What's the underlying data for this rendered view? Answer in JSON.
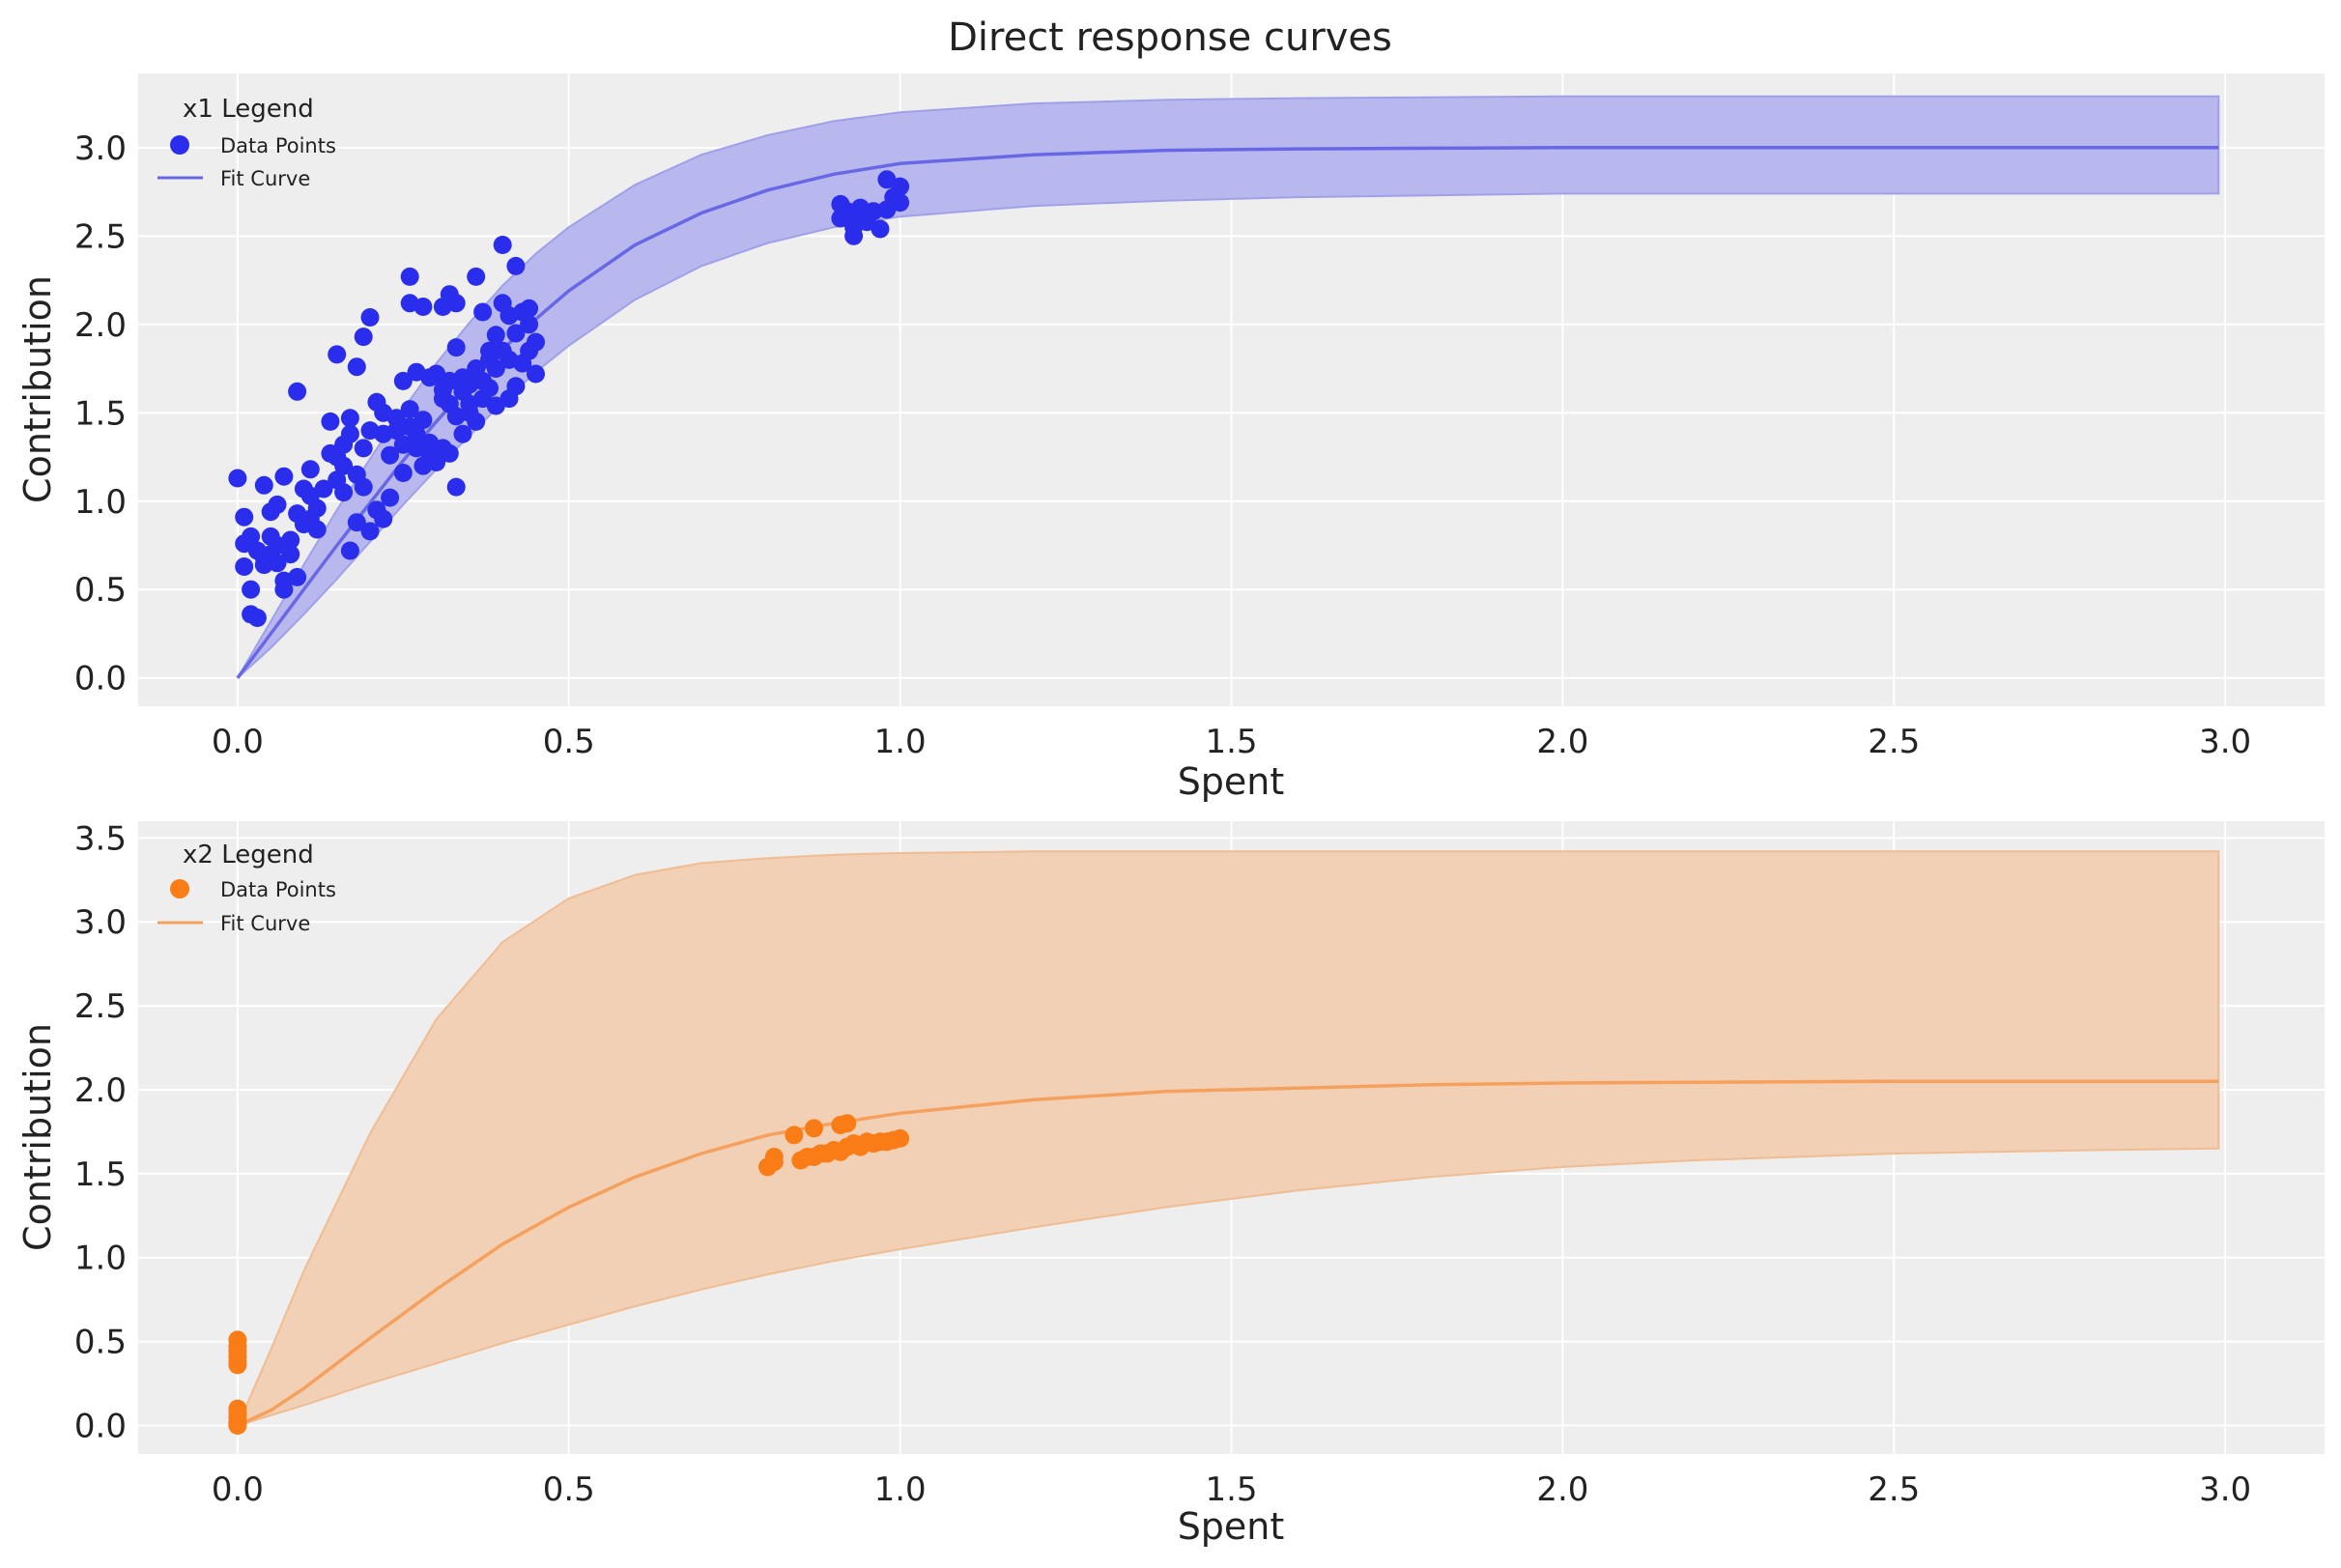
{
  "figure": {
    "title": "Direct response curves"
  },
  "chart_data": [
    {
      "type": "scatter",
      "xlabel": "Spent",
      "ylabel": "Contribution",
      "xlim": [
        -0.15,
        3.15
      ],
      "ylim": [
        -0.16,
        3.42
      ],
      "xticks": [
        0.0,
        0.5,
        1.0,
        1.5,
        2.0,
        2.5,
        3.0
      ],
      "xtick_labels": [
        "0.0",
        "0.5",
        "1.0",
        "1.5",
        "2.0",
        "2.5",
        "3.0"
      ],
      "yticks": [
        0.0,
        0.5,
        1.0,
        1.5,
        2.0,
        2.5,
        3.0
      ],
      "ytick_labels": [
        "0.0",
        "0.5",
        "1.0",
        "1.5",
        "2.0",
        "2.5",
        "3.0"
      ],
      "grid": true,
      "legend": {
        "title": "x1 Legend",
        "placement": "top-left",
        "entries": [
          "Data Points",
          "Fit Curve"
        ]
      },
      "colors": {
        "points": "#2a2eec",
        "curve": "#6868e6",
        "band": "#b8b8ee",
        "band_edge": "#a0a0ea"
      },
      "series": [
        {
          "name": "Data Points",
          "kind": "scatter",
          "points": [
            [
              0.0,
              1.13
            ],
            [
              0.01,
              0.91
            ],
            [
              0.01,
              0.76
            ],
            [
              0.01,
              0.63
            ],
            [
              0.02,
              0.5
            ],
            [
              0.02,
              0.36
            ],
            [
              0.02,
              0.8
            ],
            [
              0.03,
              0.34
            ],
            [
              0.03,
              0.72
            ],
            [
              0.04,
              1.09
            ],
            [
              0.04,
              0.64
            ],
            [
              0.04,
              0.68
            ],
            [
              0.05,
              0.8
            ],
            [
              0.05,
              0.94
            ],
            [
              0.05,
              0.7
            ],
            [
              0.06,
              0.75
            ],
            [
              0.06,
              0.65
            ],
            [
              0.06,
              0.98
            ],
            [
              0.07,
              1.14
            ],
            [
              0.07,
              0.5
            ],
            [
              0.07,
              0.55
            ],
            [
              0.08,
              0.7
            ],
            [
              0.08,
              0.78
            ],
            [
              0.09,
              1.62
            ],
            [
              0.09,
              0.93
            ],
            [
              0.09,
              0.57
            ],
            [
              0.1,
              0.87
            ],
            [
              0.1,
              1.07
            ],
            [
              0.11,
              1.03
            ],
            [
              0.11,
              0.9
            ],
            [
              0.11,
              1.18
            ],
            [
              0.12,
              0.84
            ],
            [
              0.12,
              0.96
            ],
            [
              0.13,
              1.07
            ],
            [
              0.14,
              1.27
            ],
            [
              0.14,
              1.45
            ],
            [
              0.15,
              1.83
            ],
            [
              0.15,
              1.12
            ],
            [
              0.15,
              1.25
            ],
            [
              0.16,
              1.32
            ],
            [
              0.16,
              1.05
            ],
            [
              0.16,
              1.2
            ],
            [
              0.17,
              1.47
            ],
            [
              0.17,
              1.38
            ],
            [
              0.17,
              0.72
            ],
            [
              0.18,
              1.15
            ],
            [
              0.18,
              0.88
            ],
            [
              0.18,
              1.76
            ],
            [
              0.19,
              1.93
            ],
            [
              0.19,
              1.08
            ],
            [
              0.19,
              1.3
            ],
            [
              0.2,
              1.4
            ],
            [
              0.2,
              0.83
            ],
            [
              0.2,
              2.04
            ],
            [
              0.21,
              1.56
            ],
            [
              0.21,
              0.95
            ],
            [
              0.22,
              0.9
            ],
            [
              0.22,
              1.38
            ],
            [
              0.22,
              1.5
            ],
            [
              0.23,
              1.02
            ],
            [
              0.23,
              1.26
            ],
            [
              0.24,
              1.47
            ],
            [
              0.24,
              1.4
            ],
            [
              0.25,
              1.68
            ],
            [
              0.25,
              1.16
            ],
            [
              0.25,
              1.32
            ],
            [
              0.26,
              2.27
            ],
            [
              0.26,
              2.12
            ],
            [
              0.26,
              1.42
            ],
            [
              0.26,
              1.52
            ],
            [
              0.27,
              1.73
            ],
            [
              0.27,
              1.3
            ],
            [
              0.27,
              1.38
            ],
            [
              0.28,
              2.1
            ],
            [
              0.28,
              1.2
            ],
            [
              0.28,
              1.46
            ],
            [
              0.29,
              1.7
            ],
            [
              0.29,
              1.33
            ],
            [
              0.29,
              1.27
            ],
            [
              0.3,
              1.72
            ],
            [
              0.3,
              1.22
            ],
            [
              0.31,
              2.1
            ],
            [
              0.31,
              1.58
            ],
            [
              0.31,
              1.63
            ],
            [
              0.31,
              1.3
            ],
            [
              0.32,
              2.17
            ],
            [
              0.32,
              1.68
            ],
            [
              0.32,
              1.27
            ],
            [
              0.32,
              1.55
            ],
            [
              0.33,
              1.08
            ],
            [
              0.33,
              2.12
            ],
            [
              0.33,
              1.87
            ],
            [
              0.33,
              1.48
            ],
            [
              0.34,
              1.7
            ],
            [
              0.34,
              1.62
            ],
            [
              0.34,
              1.38
            ],
            [
              0.35,
              1.55
            ],
            [
              0.35,
              1.5
            ],
            [
              0.35,
              1.66
            ],
            [
              0.36,
              1.75
            ],
            [
              0.36,
              2.27
            ],
            [
              0.36,
              1.45
            ],
            [
              0.37,
              2.07
            ],
            [
              0.37,
              1.58
            ],
            [
              0.37,
              1.68
            ],
            [
              0.38,
              1.85
            ],
            [
              0.38,
              1.8
            ],
            [
              0.38,
              1.64
            ],
            [
              0.39,
              1.54
            ],
            [
              0.39,
              1.94
            ],
            [
              0.39,
              1.75
            ],
            [
              0.4,
              2.45
            ],
            [
              0.4,
              1.85
            ],
            [
              0.4,
              2.12
            ],
            [
              0.41,
              2.05
            ],
            [
              0.41,
              1.8
            ],
            [
              0.41,
              1.58
            ],
            [
              0.42,
              2.33
            ],
            [
              0.42,
              1.95
            ],
            [
              0.42,
              1.65
            ],
            [
              0.43,
              2.07
            ],
            [
              0.43,
              1.78
            ],
            [
              0.44,
              2.0
            ],
            [
              0.44,
              1.85
            ],
            [
              0.44,
              2.09
            ],
            [
              0.45,
              1.9
            ],
            [
              0.45,
              1.72
            ],
            [
              0.91,
              2.68
            ],
            [
              0.91,
              2.6
            ],
            [
              0.92,
              2.64
            ],
            [
              0.93,
              2.5
            ],
            [
              0.93,
              2.55
            ],
            [
              0.94,
              2.62
            ],
            [
              0.94,
              2.66
            ],
            [
              0.95,
              2.58
            ],
            [
              0.95,
              2.62
            ],
            [
              0.96,
              2.64
            ],
            [
              0.97,
              2.54
            ],
            [
              0.98,
              2.82
            ],
            [
              0.98,
              2.65
            ],
            [
              0.99,
              2.72
            ],
            [
              1.0,
              2.78
            ],
            [
              1.0,
              2.69
            ]
          ]
        },
        {
          "name": "Fit Curve",
          "kind": "line",
          "x": [
            0.0,
            0.05,
            0.1,
            0.15,
            0.2,
            0.25,
            0.3,
            0.35,
            0.4,
            0.45,
            0.5,
            0.6,
            0.7,
            0.8,
            0.9,
            1.0,
            1.2,
            1.4,
            1.6,
            1.8,
            2.0,
            2.2,
            2.5,
            2.8,
            2.99
          ],
          "y": [
            0.0,
            0.25,
            0.5,
            0.75,
            0.99,
            1.23,
            1.45,
            1.66,
            1.86,
            2.03,
            2.19,
            2.45,
            2.63,
            2.76,
            2.85,
            2.91,
            2.96,
            2.985,
            2.993,
            2.997,
            3.0,
            3.0,
            3.0,
            3.0,
            3.0
          ]
        },
        {
          "kind": "band",
          "x": [
            0.0,
            0.05,
            0.1,
            0.15,
            0.2,
            0.25,
            0.3,
            0.35,
            0.4,
            0.45,
            0.5,
            0.6,
            0.7,
            0.8,
            0.9,
            1.0,
            1.2,
            1.4,
            1.6,
            1.8,
            2.0,
            2.2,
            2.5,
            2.8,
            2.99
          ],
          "lower": [
            0.0,
            0.17,
            0.36,
            0.56,
            0.77,
            0.98,
            1.18,
            1.37,
            1.56,
            1.73,
            1.88,
            2.14,
            2.33,
            2.46,
            2.55,
            2.61,
            2.67,
            2.7,
            2.72,
            2.73,
            2.74,
            2.74,
            2.74,
            2.74,
            2.74
          ],
          "upper": [
            0.0,
            0.32,
            0.64,
            0.95,
            1.24,
            1.52,
            1.78,
            2.01,
            2.22,
            2.4,
            2.55,
            2.79,
            2.96,
            3.07,
            3.15,
            3.2,
            3.25,
            3.27,
            3.28,
            3.285,
            3.29,
            3.29,
            3.29,
            3.29,
            3.29
          ]
        }
      ]
    },
    {
      "type": "scatter",
      "xlabel": "Spent",
      "ylabel": "Contribution",
      "xlim": [
        -0.15,
        3.15
      ],
      "ylim": [
        -0.17,
        3.6
      ],
      "xticks": [
        0.0,
        0.5,
        1.0,
        1.5,
        2.0,
        2.5,
        3.0
      ],
      "xtick_labels": [
        "0.0",
        "0.5",
        "1.0",
        "1.5",
        "2.0",
        "2.5",
        "3.0"
      ],
      "yticks": [
        0.0,
        0.5,
        1.0,
        1.5,
        2.0,
        2.5,
        3.0,
        3.5
      ],
      "ytick_labels": [
        "0.0",
        "0.5",
        "1.0",
        "1.5",
        "2.0",
        "2.5",
        "3.0",
        "3.5"
      ],
      "grid": true,
      "legend": {
        "title": "x2 Legend",
        "placement": "top-left",
        "entries": [
          "Data Points",
          "Fit Curve"
        ]
      },
      "colors": {
        "points": "#fa7c17",
        "curve": "#f6a05e",
        "band": "#f1d0b6",
        "band_edge": "#f0bc92"
      },
      "series": [
        {
          "name": "Data Points",
          "kind": "scatter",
          "points": [
            [
              0.0,
              0.51
            ],
            [
              0.0,
              0.47
            ],
            [
              0.0,
              0.44
            ],
            [
              0.0,
              0.41
            ],
            [
              0.0,
              0.38
            ],
            [
              0.0,
              0.36
            ],
            [
              0.0,
              0.1
            ],
            [
              0.0,
              0.07
            ],
            [
              0.0,
              0.05
            ],
            [
              0.0,
              0.02
            ],
            [
              0.0,
              0.01
            ],
            [
              0.0,
              0.0
            ],
            [
              0.8,
              1.54
            ],
            [
              0.81,
              1.57
            ],
            [
              0.81,
              1.6
            ],
            [
              0.84,
              1.73
            ],
            [
              0.85,
              1.58
            ],
            [
              0.86,
              1.6
            ],
            [
              0.87,
              1.6
            ],
            [
              0.87,
              1.77
            ],
            [
              0.88,
              1.62
            ],
            [
              0.89,
              1.62
            ],
            [
              0.9,
              1.64
            ],
            [
              0.91,
              1.63
            ],
            [
              0.91,
              1.79
            ],
            [
              0.92,
              1.8
            ],
            [
              0.92,
              1.66
            ],
            [
              0.93,
              1.68
            ],
            [
              0.94,
              1.66
            ],
            [
              0.95,
              1.69
            ],
            [
              0.96,
              1.68
            ],
            [
              0.97,
              1.69
            ],
            [
              0.98,
              1.69
            ],
            [
              0.99,
              1.7
            ],
            [
              1.0,
              1.71
            ]
          ]
        },
        {
          "name": "Fit Curve",
          "kind": "line",
          "x": [
            0.0,
            0.05,
            0.1,
            0.2,
            0.3,
            0.4,
            0.5,
            0.6,
            0.7,
            0.8,
            0.9,
            1.0,
            1.2,
            1.4,
            1.6,
            1.8,
            2.0,
            2.2,
            2.5,
            2.8,
            2.99
          ],
          "y": [
            0.0,
            0.09,
            0.22,
            0.52,
            0.81,
            1.08,
            1.3,
            1.48,
            1.62,
            1.73,
            1.8,
            1.86,
            1.94,
            1.99,
            2.01,
            2.03,
            2.04,
            2.045,
            2.05,
            2.05,
            2.05
          ]
        },
        {
          "kind": "band",
          "x": [
            0.0,
            0.05,
            0.1,
            0.2,
            0.3,
            0.4,
            0.5,
            0.6,
            0.7,
            0.8,
            0.9,
            1.0,
            1.2,
            1.4,
            1.6,
            1.8,
            2.0,
            2.2,
            2.5,
            2.8,
            2.99
          ],
          "lower": [
            0.0,
            0.06,
            0.12,
            0.25,
            0.37,
            0.49,
            0.6,
            0.71,
            0.81,
            0.9,
            0.98,
            1.05,
            1.18,
            1.3,
            1.4,
            1.48,
            1.54,
            1.58,
            1.62,
            1.64,
            1.65
          ],
          "upper": [
            0.0,
            0.45,
            0.92,
            1.74,
            2.42,
            2.88,
            3.14,
            3.28,
            3.35,
            3.38,
            3.4,
            3.41,
            3.42,
            3.42,
            3.42,
            3.42,
            3.42,
            3.42,
            3.42,
            3.42,
            3.42
          ]
        }
      ]
    }
  ]
}
